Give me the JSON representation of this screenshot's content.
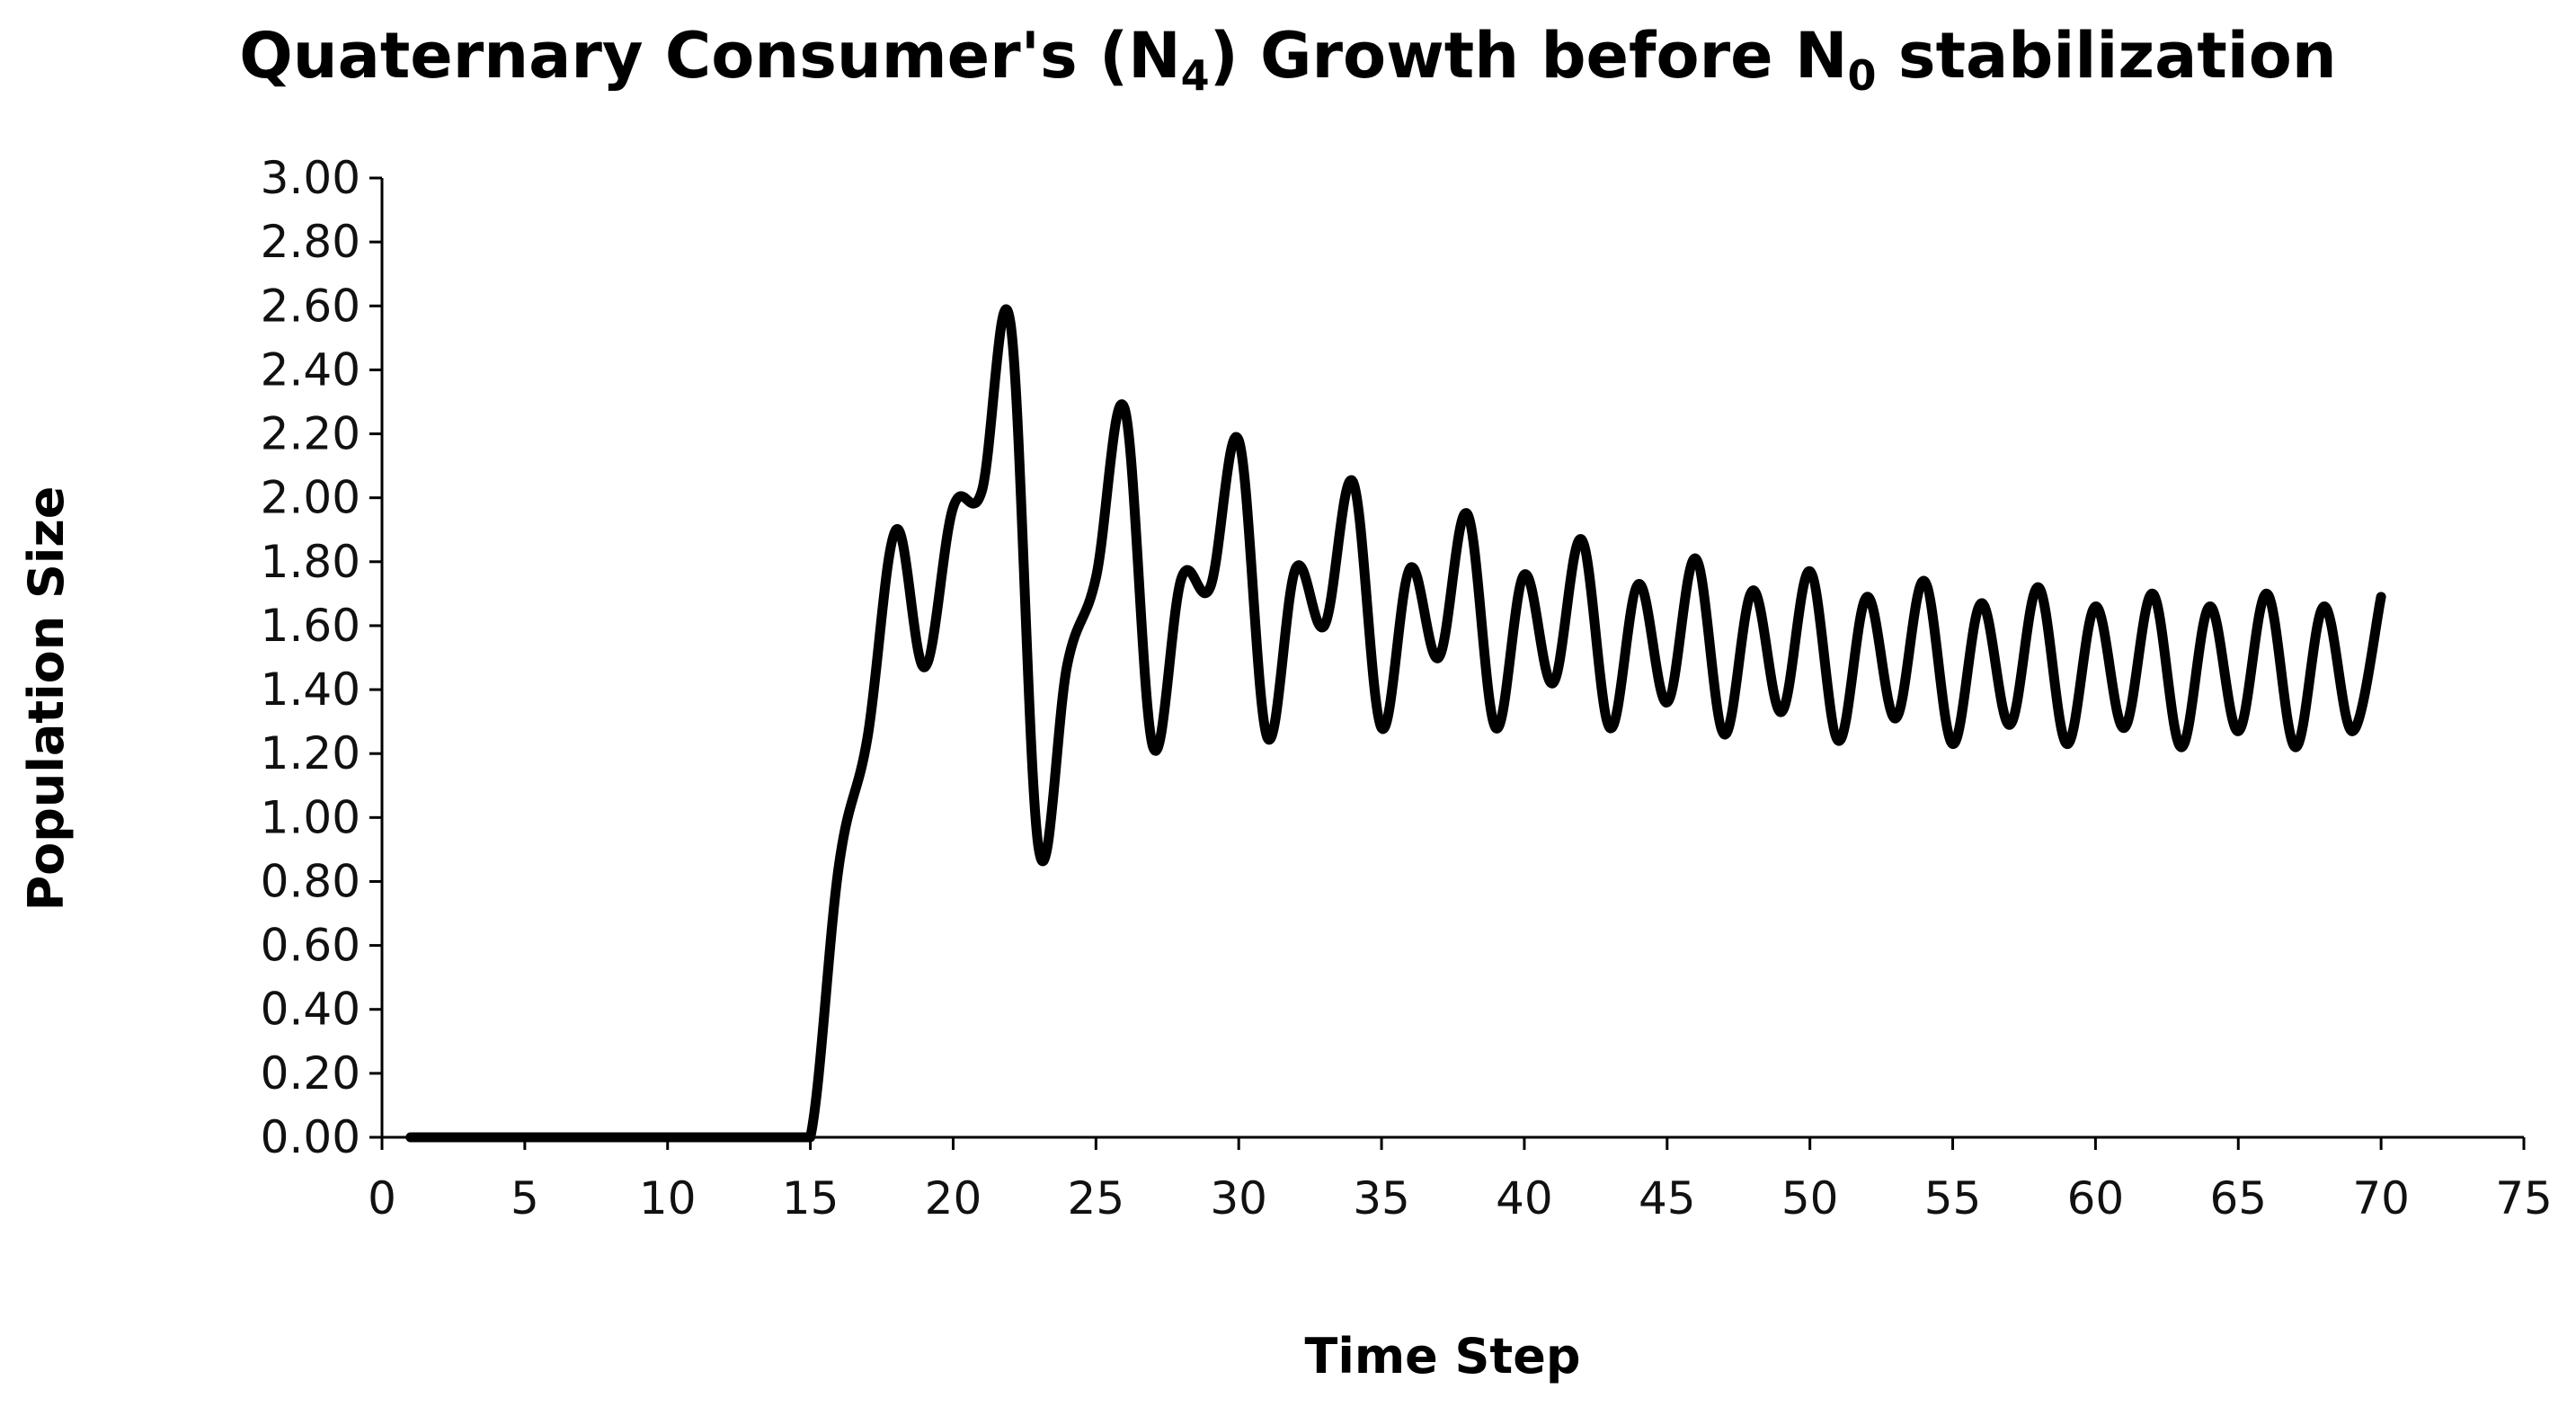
{
  "chart_data": {
    "type": "line",
    "title": {
      "main": "Quaternary Consumer's (N",
      "sub1": "4",
      "mid": ") Growth before N",
      "sub2": "0",
      "end": " stabilization"
    },
    "xlabel": "Time Step",
    "ylabel": "Population Size",
    "xlim": [
      0,
      75
    ],
    "ylim": [
      0,
      3
    ],
    "x_ticks": [
      "0",
      "5",
      "10",
      "15",
      "20",
      "25",
      "30",
      "35",
      "40",
      "45",
      "50",
      "55",
      "60",
      "65",
      "70",
      "75"
    ],
    "y_ticks": [
      "0.00",
      "0.20",
      "0.40",
      "0.60",
      "0.80",
      "1.00",
      "1.20",
      "1.40",
      "1.60",
      "1.80",
      "2.00",
      "2.20",
      "2.40",
      "2.60",
      "2.80",
      "3.00"
    ],
    "grid": false,
    "line_color": "#000000",
    "series": [
      {
        "x": [
          1,
          2,
          3,
          4,
          5,
          6,
          7,
          8,
          9,
          10,
          11,
          12,
          13,
          14,
          15,
          16,
          17,
          18,
          19,
          20,
          21,
          22,
          23,
          24,
          25,
          26,
          27,
          28,
          29,
          30,
          31,
          32,
          33,
          34,
          35,
          36,
          37,
          38,
          39,
          40,
          41,
          42,
          43,
          44,
          45,
          46,
          47,
          48,
          49,
          50,
          51,
          52,
          53,
          54,
          55,
          56,
          57,
          58,
          59,
          60,
          61,
          62,
          63,
          64,
          65,
          66,
          67,
          68,
          69,
          70
        ],
        "y": [
          0,
          0,
          0,
          0,
          0,
          0,
          0,
          0,
          0,
          0,
          0,
          0,
          0,
          0,
          0,
          0.85,
          1.25,
          1.9,
          1.47,
          1.97,
          2.02,
          2.55,
          0.9,
          1.48,
          1.75,
          2.28,
          1.22,
          1.75,
          1.72,
          2.18,
          1.25,
          1.78,
          1.6,
          2.05,
          1.28,
          1.78,
          1.5,
          1.95,
          1.28,
          1.76,
          1.42,
          1.87,
          1.28,
          1.73,
          1.36,
          1.81,
          1.26,
          1.71,
          1.33,
          1.77,
          1.24,
          1.69,
          1.31,
          1.74,
          1.23,
          1.67,
          1.29,
          1.72,
          1.23,
          1.66,
          1.28,
          1.7,
          1.22,
          1.66,
          1.27,
          1.7,
          1.22,
          1.66,
          1.27,
          1.69
        ]
      }
    ]
  }
}
